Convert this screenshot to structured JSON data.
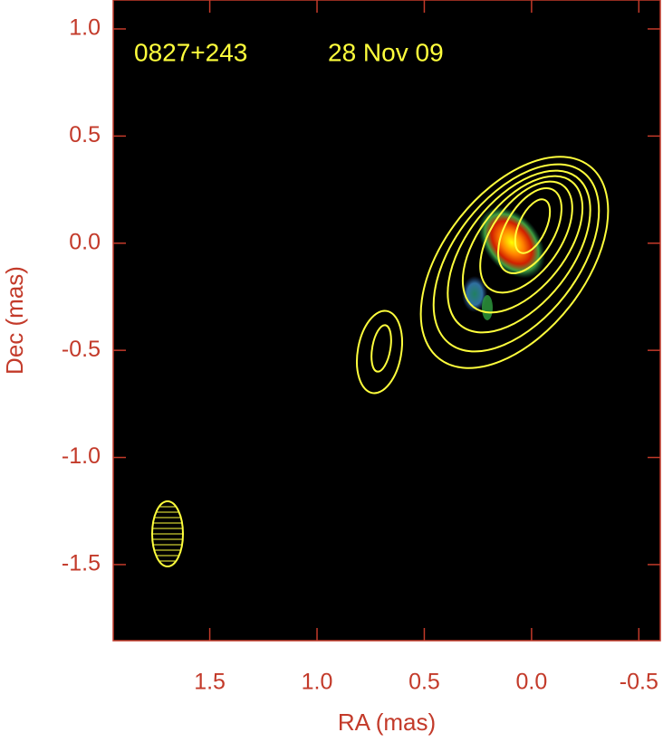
{
  "chart_data": {
    "type": "image",
    "annotations": [
      "0827+243",
      "28 Nov 09"
    ],
    "xlabel": "RA (mas)",
    "ylabel": "Dec (mas)",
    "xlim": [
      1.95,
      -0.6
    ],
    "ylim": [
      -1.855,
      1.135
    ],
    "xticks": [
      1.5,
      {
        "value": 1.0,
        "label": "1.0"
      },
      0.5,
      {
        "value": 0.0,
        "label": "0.0"
      },
      -0.5
    ],
    "yticks": [
      {
        "value": 1.0,
        "label": "1.0"
      },
      0.5,
      {
        "value": 0.0,
        "label": "0.0"
      },
      -0.5,
      {
        "value": -1.0,
        "label": "-1.0"
      },
      -1.5
    ],
    "axis_color": "#c33a2a",
    "background": "#000000",
    "contour_color": "#ffff3c"
  }
}
